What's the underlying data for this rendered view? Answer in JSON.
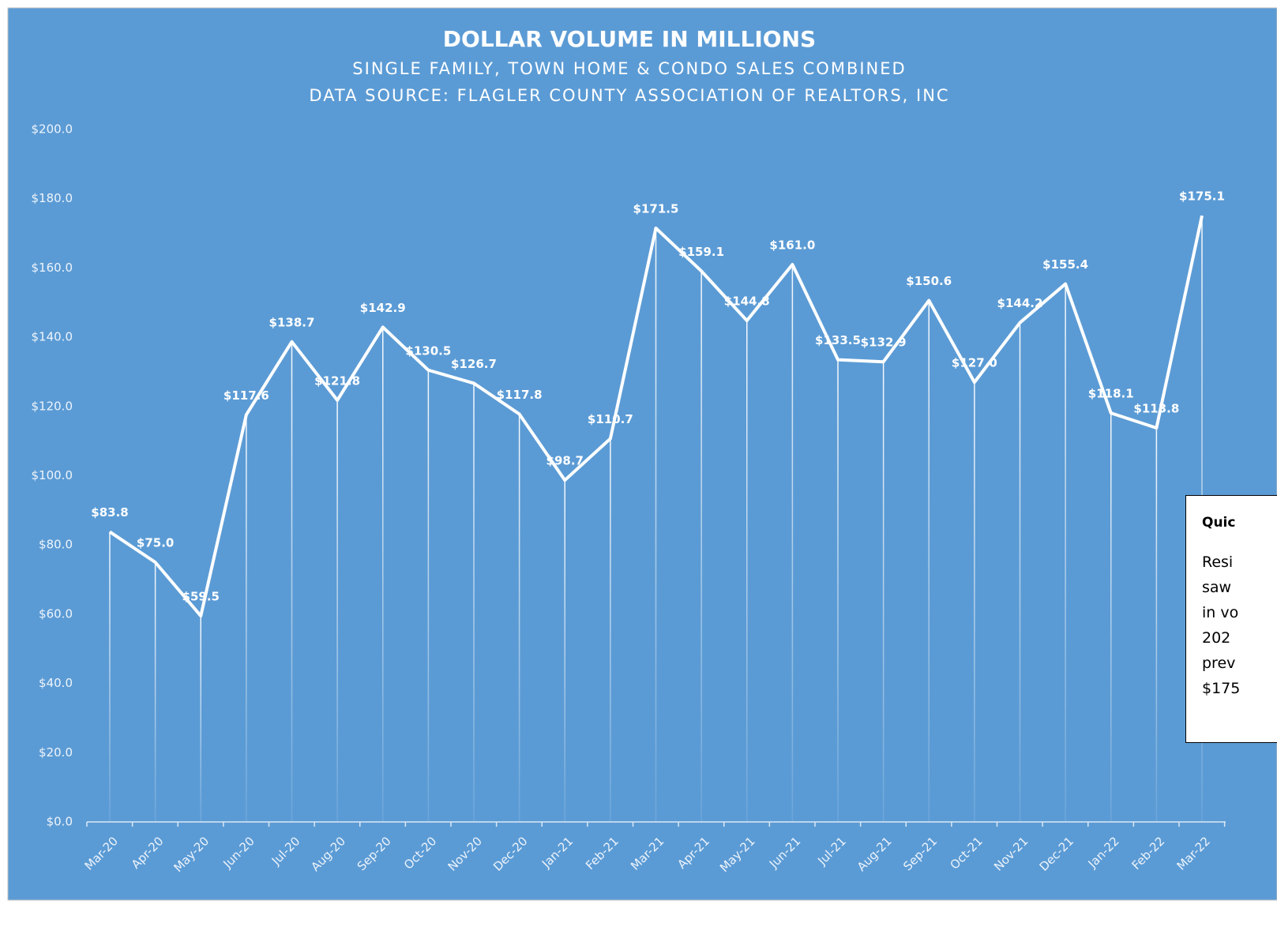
{
  "chart_data": {
    "type": "line",
    "title": "DOLLAR VOLUME IN MILLIONS",
    "subtitle": "SINGLE FAMILY, TOWN HOME & CONDO SALES COMBINED",
    "source": "DATA SOURCE:  FLAGLER COUNTY ASSOCIATION OF REALTORS, INC",
    "categories": [
      "Mar-20",
      "Apr-20",
      "May-20",
      "Jun-20",
      "Jul-20",
      "Aug-20",
      "Sep-20",
      "Oct-20",
      "Nov-20",
      "Dec-20",
      "Jan-21",
      "Feb-21",
      "Mar-21",
      "Apr-21",
      "May-21",
      "Jun-21",
      "Jul-21",
      "Aug-21",
      "Sep-21",
      "Oct-21",
      "Nov-21",
      "Dec-21",
      "Jan-22",
      "Feb-22",
      "Mar-22"
    ],
    "series": [
      {
        "name": "Dollar Volume",
        "color": "#ffffff",
        "values": [
          83.8,
          75.0,
          59.5,
          117.6,
          138.7,
          121.8,
          142.9,
          130.5,
          126.7,
          117.8,
          98.7,
          110.7,
          171.5,
          159.1,
          144.8,
          161.0,
          133.5,
          132.9,
          150.6,
          127.0,
          144.2,
          155.4,
          118.1,
          113.8,
          175.1
        ],
        "value_labels": [
          "$83.8",
          "$75.0",
          "$59.5",
          "$117.6",
          "$138.7",
          "$121.8",
          "$142.9",
          "$130.5",
          "$126.7",
          "$117.8",
          "$98.7",
          "$110.7",
          "$171.5",
          "$159.1",
          "$144.8",
          "$161.0",
          "$133.5",
          "$132.9",
          "$150.6",
          "$127.0",
          "$144.2",
          "$155.4",
          "$118.1",
          "$113.8",
          "$175.1"
        ]
      }
    ],
    "ylim": [
      0,
      200
    ],
    "yticks": [
      {
        "value": 0,
        "label": "$0.0"
      },
      {
        "value": 20,
        "label": "$20.0"
      },
      {
        "value": 40,
        "label": "$40.0"
      },
      {
        "value": 60,
        "label": "$60.0"
      },
      {
        "value": 80,
        "label": "$80.0"
      },
      {
        "value": 100,
        "label": "$100.0"
      },
      {
        "value": 120,
        "label": "$120.0"
      },
      {
        "value": 140,
        "label": "$140.0"
      },
      {
        "value": 160,
        "label": "$160.0"
      },
      {
        "value": 180,
        "label": "$180.0"
      },
      {
        "value": 200,
        "label": "$200.0"
      }
    ],
    "grid": false,
    "drop_lines": true
  },
  "note": {
    "heading": "Quic",
    "lines": [
      "Resi",
      "saw",
      "in vo",
      "202",
      "prev",
      "$175"
    ]
  }
}
